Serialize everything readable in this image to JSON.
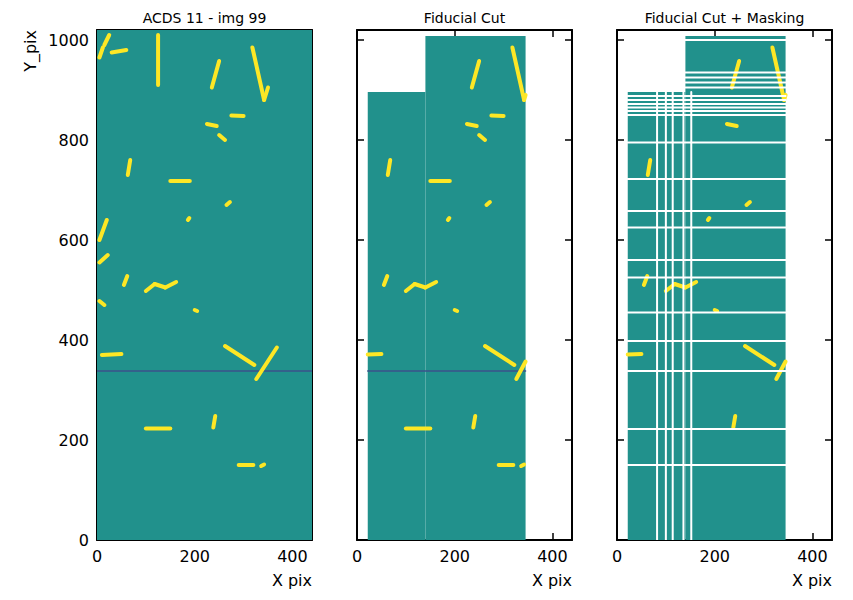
{
  "chart_data": [
    {
      "type": "image",
      "title": "ACDS 11 - img 99",
      "x_label": "X pix",
      "y_label": "Y_pix",
      "xlim": [
        0,
        440
      ],
      "xticks": [
        0,
        200,
        400
      ],
      "ylim": [
        0,
        1020
      ],
      "yticks": [
        0,
        200,
        400,
        600,
        800,
        1000
      ],
      "background": {
        "color": "#21918c",
        "regions": [
          [
            0,
            0,
            440,
            1020
          ]
        ]
      },
      "tracks": {
        "color": "#fde725",
        "segments": [
          [
            318,
            985,
            342,
            880
          ],
          [
            342,
            880,
            350,
            905
          ],
          [
            235,
            905,
            250,
            958
          ],
          [
            30,
            975,
            60,
            980
          ],
          [
            15,
            990,
            25,
            1010
          ],
          [
            5,
            965,
            12,
            985
          ],
          [
            125,
            910,
            125,
            1010
          ],
          [
            225,
            832,
            245,
            828
          ],
          [
            275,
            849,
            300,
            848
          ],
          [
            250,
            810,
            262,
            800
          ],
          [
            63,
            730,
            68,
            760
          ],
          [
            150,
            718,
            190,
            718
          ],
          [
            5,
            600,
            20,
            640
          ],
          [
            265,
            670,
            272,
            676
          ],
          [
            186,
            640,
            189,
            644
          ],
          [
            5,
            555,
            22,
            570
          ],
          [
            100,
            498,
            118,
            512
          ],
          [
            118,
            512,
            140,
            505
          ],
          [
            140,
            505,
            162,
            516
          ],
          [
            55,
            510,
            62,
            528
          ],
          [
            5,
            478,
            15,
            470
          ],
          [
            200,
            460,
            205,
            458
          ],
          [
            10,
            370,
            50,
            372
          ],
          [
            262,
            388,
            322,
            350
          ],
          [
            326,
            322,
            368,
            385
          ],
          [
            238,
            225,
            242,
            248
          ],
          [
            100,
            223,
            150,
            223
          ],
          [
            290,
            150,
            320,
            150
          ],
          [
            336,
            148,
            342,
            151
          ]
        ]
      },
      "dark_rows": {
        "color": "#3b528b",
        "segments": [
          [
            0,
            338,
            440,
            338
          ]
        ]
      }
    },
    {
      "type": "image",
      "title": "Fiducial Cut",
      "x_label": "X pix",
      "xlim": [
        0,
        440
      ],
      "xticks": [
        0,
        200,
        400
      ],
      "ylim": [
        0,
        1020
      ],
      "yticks": [
        0,
        200,
        400,
        600,
        800,
        1000
      ],
      "tick_labels": "x",
      "background": {
        "color": "#21918c",
        "regions": [
          [
            22,
            0,
            140,
            896
          ],
          [
            140,
            0,
            345,
            1008
          ]
        ]
      },
      "tracks": {
        "color": "#fde725",
        "segments": [
          [
            318,
            985,
            342,
            880
          ],
          [
            342,
            880,
            345,
            890
          ],
          [
            235,
            905,
            250,
            958
          ],
          [
            225,
            832,
            245,
            828
          ],
          [
            275,
            849,
            300,
            848
          ],
          [
            250,
            810,
            262,
            800
          ],
          [
            63,
            730,
            68,
            760
          ],
          [
            150,
            718,
            190,
            718
          ],
          [
            265,
            670,
            272,
            676
          ],
          [
            186,
            640,
            189,
            644
          ],
          [
            100,
            498,
            118,
            512
          ],
          [
            118,
            512,
            140,
            505
          ],
          [
            140,
            505,
            162,
            516
          ],
          [
            55,
            510,
            62,
            528
          ],
          [
            200,
            460,
            205,
            458
          ],
          [
            22,
            371,
            50,
            372
          ],
          [
            262,
            388,
            322,
            350
          ],
          [
            326,
            322,
            345,
            357
          ],
          [
            238,
            225,
            242,
            248
          ],
          [
            100,
            223,
            150,
            223
          ],
          [
            290,
            150,
            320,
            150
          ],
          [
            336,
            148,
            342,
            151
          ]
        ]
      },
      "dark_rows": {
        "color": "#3b528b",
        "segments": [
          [
            22,
            338,
            345,
            338
          ]
        ]
      }
    },
    {
      "type": "image",
      "title": "Fiducial Cut + Masking",
      "x_label": "X pix",
      "xlim": [
        0,
        440
      ],
      "xticks": [
        0,
        200,
        400
      ],
      "ylim": [
        0,
        1020
      ],
      "yticks": [
        0,
        200,
        400,
        600,
        800,
        1000
      ],
      "tick_labels": "x",
      "background": {
        "color": "#21918c",
        "regions": [
          [
            22,
            0,
            140,
            896
          ],
          [
            140,
            0,
            345,
            1008
          ]
        ]
      },
      "tracks": {
        "color": "#fde725",
        "segments": [
          [
            318,
            985,
            342,
            880
          ],
          [
            342,
            880,
            345,
            890
          ],
          [
            235,
            905,
            250,
            958
          ],
          [
            225,
            832,
            245,
            828
          ],
          [
            63,
            730,
            68,
            760
          ],
          [
            265,
            670,
            272,
            676
          ],
          [
            186,
            640,
            189,
            644
          ],
          [
            100,
            498,
            118,
            512
          ],
          [
            118,
            512,
            140,
            505
          ],
          [
            140,
            505,
            162,
            516
          ],
          [
            55,
            510,
            62,
            528
          ],
          [
            200,
            460,
            205,
            458
          ],
          [
            22,
            371,
            50,
            372
          ],
          [
            262,
            388,
            322,
            350
          ],
          [
            326,
            322,
            345,
            357
          ],
          [
            238,
            225,
            242,
            248
          ]
        ]
      },
      "masked": {
        "color": "#ffffff",
        "segments": [
          [
            82,
            0,
            82,
            896
          ],
          [
            100,
            0,
            100,
            896
          ],
          [
            114,
            0,
            114,
            896
          ],
          [
            136,
            0,
            136,
            896
          ],
          [
            152,
            0,
            152,
            896
          ],
          [
            22,
            150,
            345,
            150
          ],
          [
            22,
            222,
            345,
            222
          ],
          [
            22,
            338,
            345,
            338
          ],
          [
            22,
            398,
            345,
            398
          ],
          [
            22,
            455,
            345,
            455
          ],
          [
            22,
            525,
            345,
            525
          ],
          [
            22,
            560,
            345,
            560
          ],
          [
            22,
            625,
            345,
            625
          ],
          [
            22,
            658,
            345,
            658
          ],
          [
            22,
            722,
            345,
            722
          ],
          [
            22,
            795,
            345,
            795
          ],
          [
            22,
            850,
            345,
            850
          ],
          [
            22,
            858,
            345,
            858
          ],
          [
            22,
            865,
            345,
            865
          ],
          [
            22,
            872,
            345,
            872
          ],
          [
            22,
            880,
            345,
            880
          ],
          [
            22,
            888,
            345,
            888
          ],
          [
            140,
            905,
            345,
            905
          ],
          [
            140,
            915,
            345,
            915
          ],
          [
            140,
            925,
            345,
            925
          ],
          [
            140,
            935,
            345,
            935
          ],
          [
            140,
            1000,
            345,
            1000
          ]
        ]
      }
    }
  ]
}
